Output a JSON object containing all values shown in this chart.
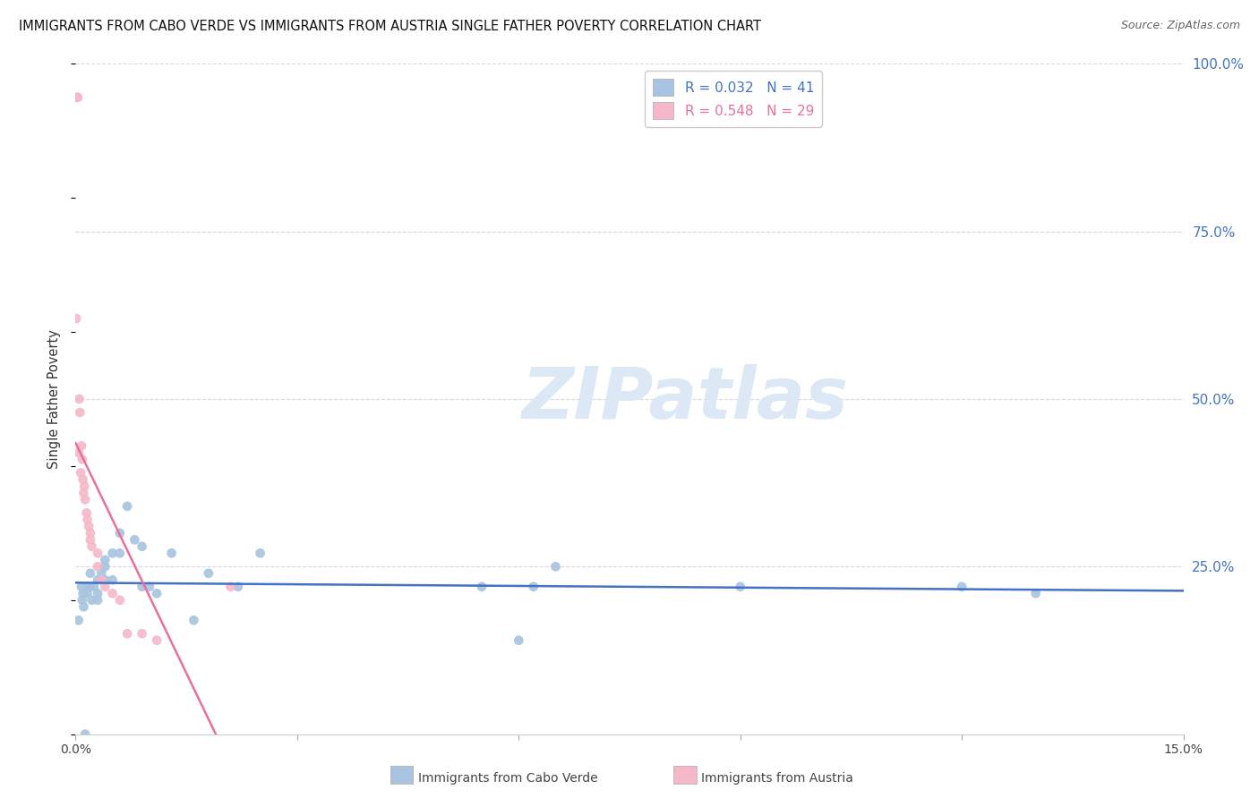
{
  "title": "IMMIGRANTS FROM CABO VERDE VS IMMIGRANTS FROM AUSTRIA SINGLE FATHER POVERTY CORRELATION CHART",
  "source": "Source: ZipAtlas.com",
  "ylabel": "Single Father Poverty",
  "xlim": [
    0.0,
    0.15
  ],
  "ylim": [
    0.0,
    1.0
  ],
  "cabo_verde_color": "#a8c4e0",
  "austria_color": "#f4b8c8",
  "cabo_verde_line_color": "#4472c4",
  "austria_line_color": "#e8709a",
  "austria_line_dashed_color": "#e8a0b8",
  "watermark_color": "#dce8f5",
  "grid_color": "#d8d8d8",
  "background_color": "#ffffff",
  "scatter_size": 60,
  "cabo_verde_x": [
    0.0004,
    0.0008,
    0.0009,
    0.001,
    0.0011,
    0.0013,
    0.0015,
    0.0016,
    0.002,
    0.002,
    0.0022,
    0.0025,
    0.003,
    0.003,
    0.003,
    0.0035,
    0.004,
    0.004,
    0.004,
    0.005,
    0.005,
    0.006,
    0.006,
    0.007,
    0.008,
    0.009,
    0.009,
    0.01,
    0.011,
    0.013,
    0.016,
    0.018,
    0.022,
    0.025,
    0.055,
    0.06,
    0.062,
    0.065,
    0.09,
    0.12,
    0.13
  ],
  "cabo_verde_y": [
    0.17,
    0.22,
    0.2,
    0.21,
    0.19,
    0.0,
    0.22,
    0.21,
    0.24,
    0.22,
    0.2,
    0.22,
    0.2,
    0.23,
    0.21,
    0.24,
    0.25,
    0.26,
    0.23,
    0.27,
    0.23,
    0.3,
    0.27,
    0.34,
    0.29,
    0.28,
    0.22,
    0.22,
    0.21,
    0.27,
    0.17,
    0.24,
    0.22,
    0.27,
    0.22,
    0.14,
    0.22,
    0.25,
    0.22,
    0.22,
    0.21
  ],
  "austria_x": [
    0.0001,
    0.0002,
    0.0003,
    0.0004,
    0.0005,
    0.0006,
    0.0007,
    0.0008,
    0.0009,
    0.001,
    0.0011,
    0.0012,
    0.0013,
    0.0015,
    0.0016,
    0.0018,
    0.002,
    0.002,
    0.0022,
    0.003,
    0.003,
    0.0035,
    0.004,
    0.005,
    0.006,
    0.007,
    0.009,
    0.011,
    0.021
  ],
  "austria_y": [
    0.62,
    0.95,
    0.95,
    0.42,
    0.5,
    0.48,
    0.39,
    0.43,
    0.41,
    0.38,
    0.36,
    0.37,
    0.35,
    0.33,
    0.32,
    0.31,
    0.3,
    0.29,
    0.28,
    0.27,
    0.25,
    0.23,
    0.22,
    0.21,
    0.2,
    0.15,
    0.15,
    0.14,
    0.22
  ],
  "cabo_verde_trend_x": [
    0.0,
    0.15
  ],
  "austria_solid_trend_x": [
    0.0,
    0.021
  ],
  "austria_dashed_trend_x": [
    0.021,
    0.035
  ],
  "legend_label_cv": "R = 0.032   N = 41",
  "legend_label_at": "R = 0.548   N = 29"
}
